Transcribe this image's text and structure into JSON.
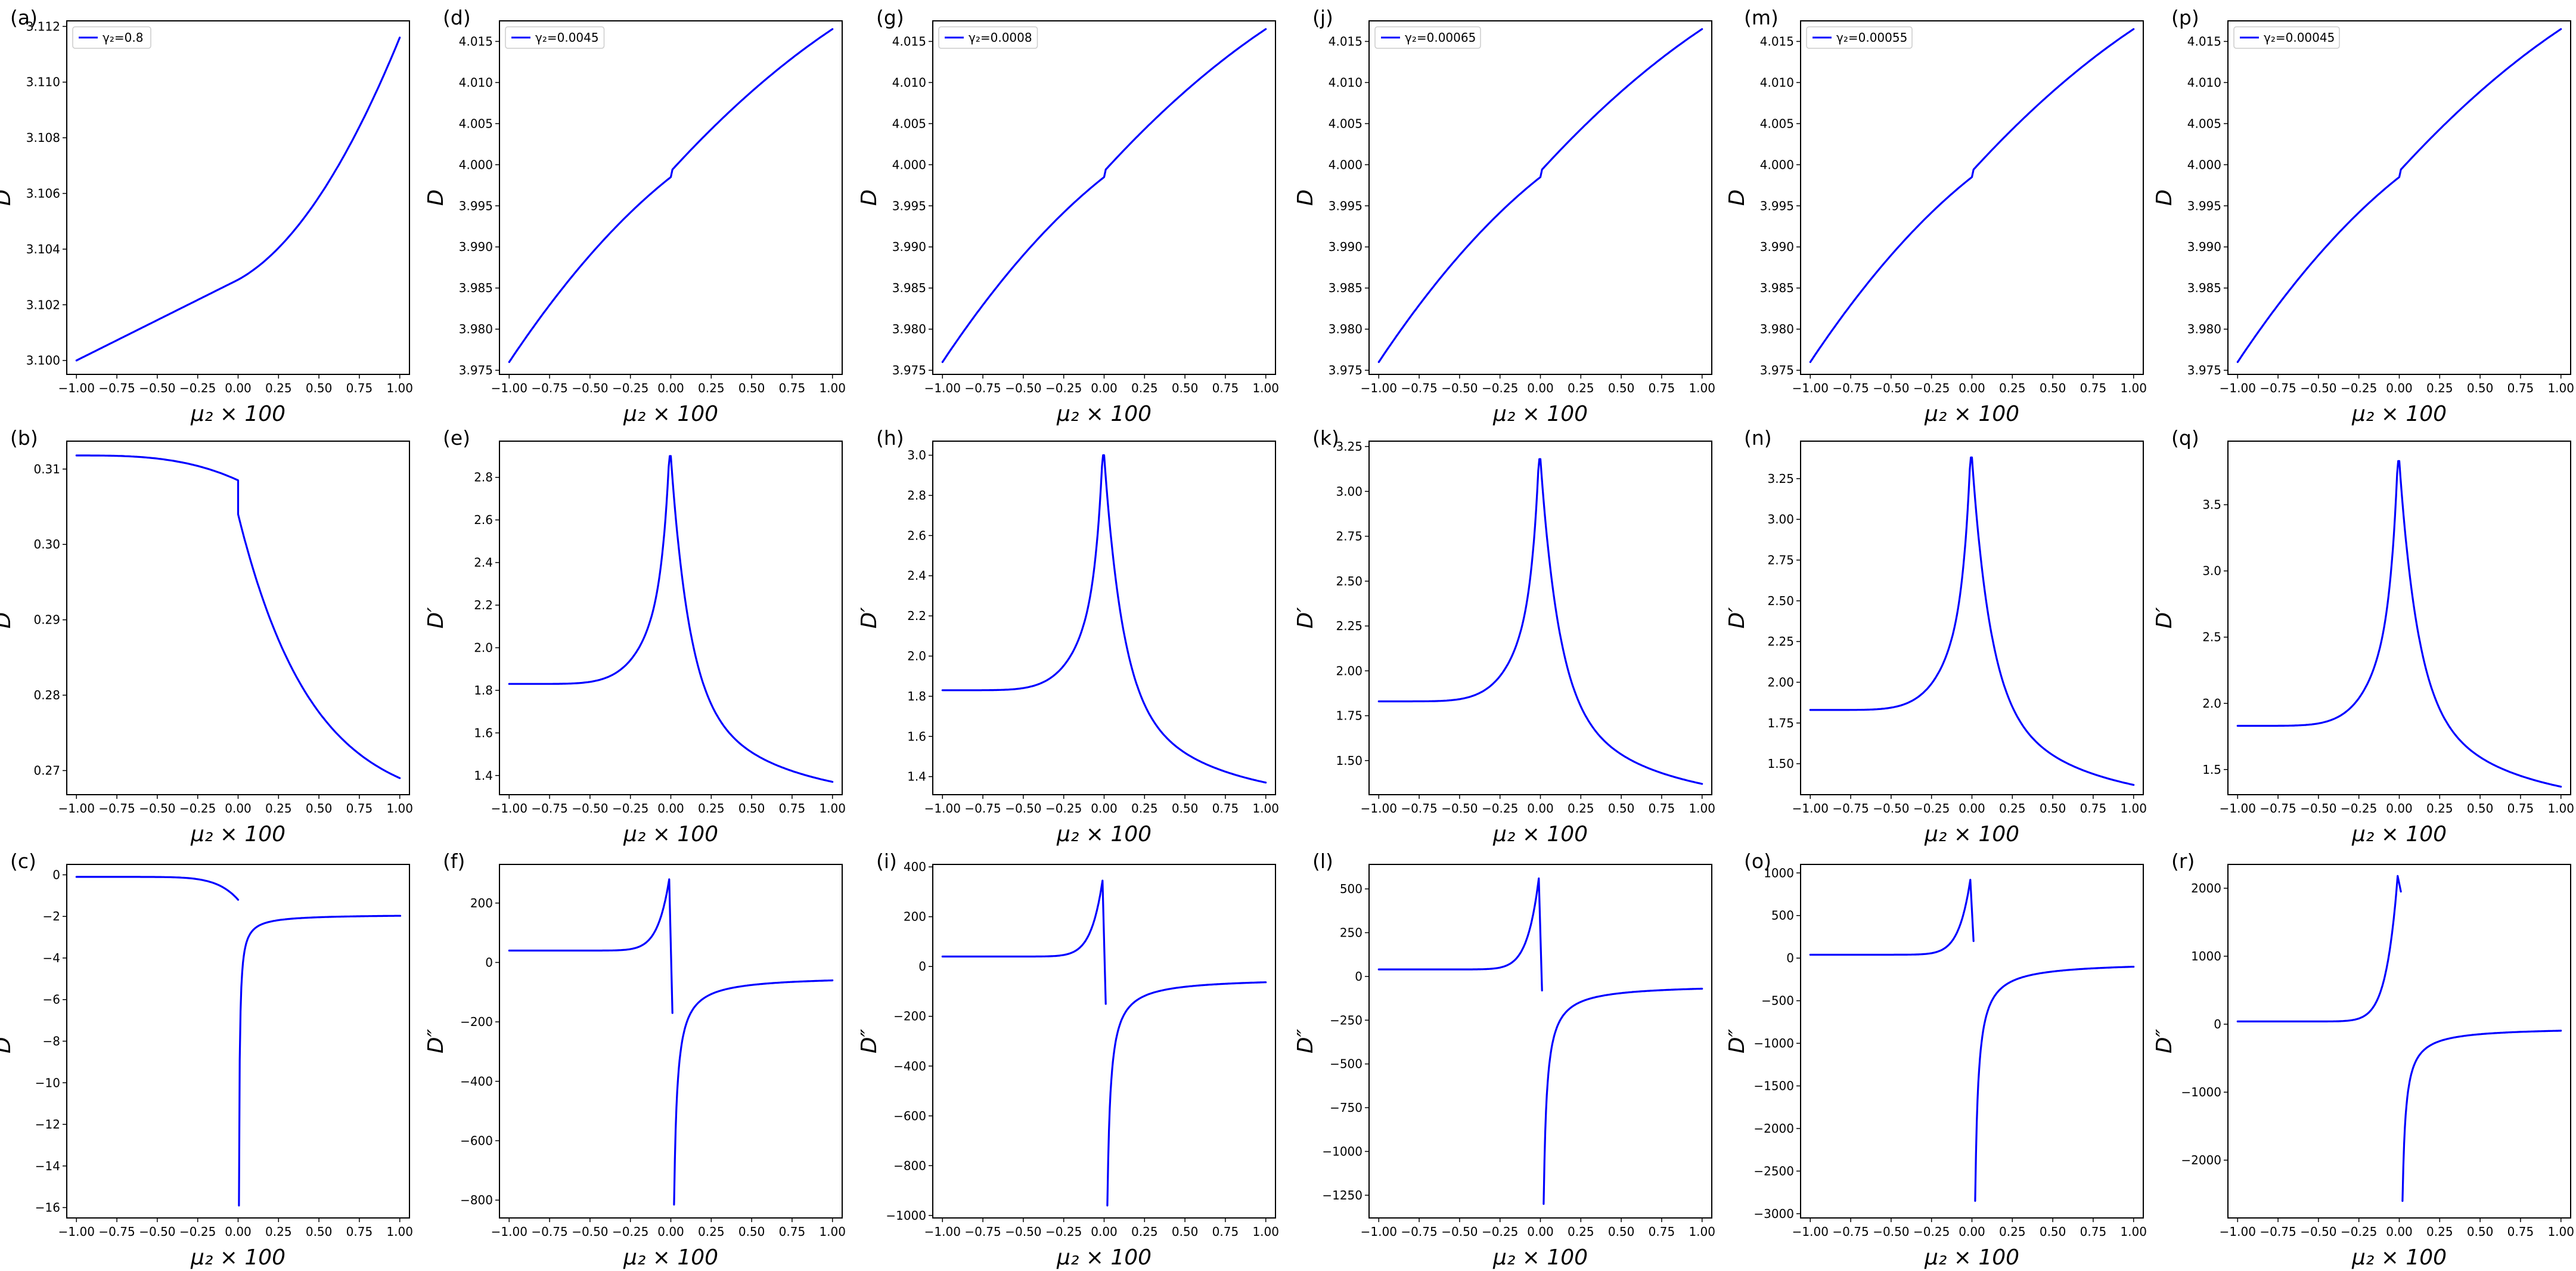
{
  "chart_data": [
    {
      "id": "a",
      "panel_label": "(a)",
      "type": "line",
      "series": [
        {
          "name": "γ₂=0.8",
          "shape": "Da"
        }
      ],
      "xlabel": "μ₂ × 100",
      "ylabel": "D",
      "xlim": [
        -1.06,
        1.06
      ],
      "ylim": [
        3.0995,
        3.1122
      ],
      "xticks": [
        "−1.00",
        "−0.75",
        "−0.50",
        "−0.25",
        "0.00",
        "0.25",
        "0.50",
        "0.75",
        "1.00"
      ],
      "yticks": [
        "3.100",
        "3.102",
        "3.104",
        "3.106",
        "3.108",
        "3.110",
        "3.112"
      ],
      "legend": "top-left",
      "grid": false
    },
    {
      "id": "b",
      "panel_label": "(b)",
      "type": "line",
      "series": [
        {
          "name": "",
          "shape": "Dpa"
        }
      ],
      "xlabel": "μ₂ × 100",
      "ylabel": "D′",
      "xlim": [
        -1.06,
        1.06
      ],
      "ylim": [
        0.2668,
        0.3137
      ],
      "xticks": [
        "−1.00",
        "−0.75",
        "−0.50",
        "−0.25",
        "0.00",
        "0.25",
        "0.50",
        "0.75",
        "1.00"
      ],
      "yticks": [
        "0.27",
        "0.28",
        "0.29",
        "0.30",
        "0.31"
      ],
      "grid": false
    },
    {
      "id": "c",
      "panel_label": "(c)",
      "type": "line",
      "series": [
        {
          "name": "",
          "shape": "Dppa"
        }
      ],
      "xlabel": "μ₂ × 100",
      "ylabel": "D″",
      "xlim": [
        -1.06,
        1.06
      ],
      "ylim": [
        -16.5,
        0.5
      ],
      "xticks": [
        "−1.00",
        "−0.75",
        "−0.50",
        "−0.25",
        "0.00",
        "0.25",
        "0.50",
        "0.75",
        "1.00"
      ],
      "yticks": [
        "0",
        "−2",
        "−4",
        "−6",
        "−8",
        "−10",
        "−12",
        "−14",
        "−16"
      ],
      "grid": false
    },
    {
      "id": "d",
      "panel_label": "(d)",
      "type": "line",
      "series": [
        {
          "name": "γ₂=0.0045",
          "shape": "D"
        }
      ],
      "xlabel": "μ₂ × 100",
      "ylabel": "D",
      "xlim": [
        -1.06,
        1.06
      ],
      "ylim": [
        3.9745,
        4.0175
      ],
      "xticks": [
        "−1.00",
        "−0.75",
        "−0.50",
        "−0.25",
        "0.00",
        "0.25",
        "0.50",
        "0.75",
        "1.00"
      ],
      "yticks": [
        "3.975",
        "3.980",
        "3.985",
        "3.990",
        "3.995",
        "4.000",
        "4.005",
        "4.010",
        "4.015"
      ],
      "legend": "top-left",
      "grid": false
    },
    {
      "id": "e",
      "panel_label": "(e)",
      "type": "line",
      "series": [
        {
          "name": "",
          "shape": "Dp"
        }
      ],
      "xlabel": "μ₂ × 100",
      "ylabel": "D′",
      "xlim": [
        -1.06,
        1.06
      ],
      "ylim": [
        1.31,
        2.97
      ],
      "xticks": [
        "−1.00",
        "−0.75",
        "−0.50",
        "−0.25",
        "0.00",
        "0.25",
        "0.50",
        "0.75",
        "1.00"
      ],
      "yticks": [
        "1.4",
        "1.6",
        "1.8",
        "2.0",
        "2.2",
        "2.4",
        "2.6",
        "2.8"
      ],
      "grid": false
    },
    {
      "id": "f",
      "panel_label": "(f)",
      "type": "line",
      "series": [
        {
          "name": "",
          "shape": "Dpp"
        }
      ],
      "xlabel": "μ₂ × 100",
      "ylabel": "D″",
      "xlim": [
        -1.06,
        1.06
      ],
      "ylim": [
        -860,
        330
      ],
      "xticks": [
        "−1.00",
        "−0.75",
        "−0.50",
        "−0.25",
        "0.00",
        "0.25",
        "0.50",
        "0.75",
        "1.00"
      ],
      "yticks": [
        "200",
        "0",
        "−200",
        "−400",
        "−600",
        "−800"
      ],
      "grid": false
    },
    {
      "id": "g",
      "panel_label": "(g)",
      "type": "line",
      "series": [
        {
          "name": "γ₂=0.0008",
          "shape": "D"
        }
      ],
      "xlabel": "μ₂ × 100",
      "ylabel": "D",
      "xlim": [
        -1.06,
        1.06
      ],
      "ylim": [
        3.9745,
        4.0175
      ],
      "xticks": [
        "−1.00",
        "−0.75",
        "−0.50",
        "−0.25",
        "0.00",
        "0.25",
        "0.50",
        "0.75",
        "1.00"
      ],
      "yticks": [
        "3.975",
        "3.980",
        "3.985",
        "3.990",
        "3.995",
        "4.000",
        "4.005",
        "4.010",
        "4.015"
      ],
      "legend": "top-left",
      "grid": false
    },
    {
      "id": "h",
      "panel_label": "(h)",
      "type": "line",
      "series": [
        {
          "name": "",
          "shape": "Dp"
        }
      ],
      "xlabel": "μ₂ × 100",
      "ylabel": "D′",
      "xlim": [
        -1.06,
        1.06
      ],
      "ylim": [
        1.31,
        3.07
      ],
      "xticks": [
        "−1.00",
        "−0.75",
        "−0.50",
        "−0.25",
        "0.00",
        "0.25",
        "0.50",
        "0.75",
        "1.00"
      ],
      "yticks": [
        "1.4",
        "1.6",
        "1.8",
        "2.0",
        "2.2",
        "2.4",
        "2.6",
        "2.8",
        "3.0"
      ],
      "grid": false
    },
    {
      "id": "i",
      "panel_label": "(i)",
      "type": "line",
      "series": [
        {
          "name": "",
          "shape": "Dpp"
        }
      ],
      "xlabel": "μ₂ × 100",
      "ylabel": "D″",
      "xlim": [
        -1.06,
        1.06
      ],
      "ylim": [
        -1010,
        410
      ],
      "xticks": [
        "−1.00",
        "−0.75",
        "−0.50",
        "−0.25",
        "0.00",
        "0.25",
        "0.50",
        "0.75",
        "1.00"
      ],
      "yticks": [
        "400",
        "200",
        "0",
        "−200",
        "−400",
        "−600",
        "−800",
        "−1000"
      ],
      "grid": false
    },
    {
      "id": "j",
      "panel_label": "(j)",
      "type": "line",
      "series": [
        {
          "name": "γ₂=0.00065",
          "shape": "D"
        }
      ],
      "xlabel": "μ₂ × 100",
      "ylabel": "D",
      "xlim": [
        -1.06,
        1.06
      ],
      "ylim": [
        3.9745,
        4.0175
      ],
      "xticks": [
        "−1.00",
        "−0.75",
        "−0.50",
        "−0.25",
        "0.00",
        "0.25",
        "0.50",
        "0.75",
        "1.00"
      ],
      "yticks": [
        "3.975",
        "3.980",
        "3.985",
        "3.990",
        "3.995",
        "4.000",
        "4.005",
        "4.010",
        "4.015"
      ],
      "legend": "top-left",
      "grid": false
    },
    {
      "id": "k",
      "panel_label": "(k)",
      "type": "line",
      "series": [
        {
          "name": "",
          "shape": "Dp"
        }
      ],
      "xlabel": "μ₂ × 100",
      "ylabel": "D′",
      "xlim": [
        -1.06,
        1.06
      ],
      "ylim": [
        1.31,
        3.28
      ],
      "xticks": [
        "−1.00",
        "−0.75",
        "−0.50",
        "−0.25",
        "0.00",
        "0.25",
        "0.50",
        "0.75",
        "1.00"
      ],
      "yticks": [
        "1.50",
        "1.75",
        "2.00",
        "2.25",
        "2.50",
        "2.75",
        "3.00",
        "3.25"
      ],
      "grid": false
    },
    {
      "id": "l",
      "panel_label": "(l)",
      "type": "line",
      "series": [
        {
          "name": "",
          "shape": "Dpp"
        }
      ],
      "xlabel": "μ₂ × 100",
      "ylabel": "D″",
      "xlim": [
        -1.06,
        1.06
      ],
      "ylim": [
        -1380,
        640
      ],
      "xticks": [
        "−1.00",
        "−0.75",
        "−0.50",
        "−0.25",
        "0.00",
        "0.25",
        "0.50",
        "0.75",
        "1.00"
      ],
      "yticks": [
        "500",
        "250",
        "0",
        "−250",
        "−500",
        "−750",
        "−1000",
        "−1250"
      ],
      "grid": false
    },
    {
      "id": "m",
      "panel_label": "(m)",
      "type": "line",
      "series": [
        {
          "name": "γ₂=0.00055",
          "shape": "D"
        }
      ],
      "xlabel": "μ₂ × 100",
      "ylabel": "D",
      "xlim": [
        -1.06,
        1.06
      ],
      "ylim": [
        3.9745,
        4.0175
      ],
      "xticks": [
        "−1.00",
        "−0.75",
        "−0.50",
        "−0.25",
        "0.00",
        "0.25",
        "0.50",
        "0.75",
        "1.00"
      ],
      "yticks": [
        "3.975",
        "3.980",
        "3.985",
        "3.990",
        "3.995",
        "4.000",
        "4.005",
        "4.010",
        "4.015"
      ],
      "legend": "top-left",
      "grid": false
    },
    {
      "id": "n",
      "panel_label": "(n)",
      "type": "line",
      "series": [
        {
          "name": "",
          "shape": "Dp"
        }
      ],
      "xlabel": "μ₂ × 100",
      "ylabel": "D′",
      "xlim": [
        -1.06,
        1.06
      ],
      "ylim": [
        1.31,
        3.48
      ],
      "xticks": [
        "−1.00",
        "−0.75",
        "−0.50",
        "−0.25",
        "0.00",
        "0.25",
        "0.50",
        "0.75",
        "1.00"
      ],
      "yticks": [
        "1.50",
        "1.75",
        "2.00",
        "2.25",
        "2.50",
        "2.75",
        "3.00",
        "3.25"
      ],
      "grid": false
    },
    {
      "id": "o",
      "panel_label": "(o)",
      "type": "line",
      "series": [
        {
          "name": "",
          "shape": "Dpp"
        }
      ],
      "xlabel": "μ₂ × 100",
      "ylabel": "D″",
      "xlim": [
        -1.06,
        1.06
      ],
      "ylim": [
        -3050,
        1100
      ],
      "xticks": [
        "−1.00",
        "−0.75",
        "−0.50",
        "−0.25",
        "0.00",
        "0.25",
        "0.50",
        "0.75",
        "1.00"
      ],
      "yticks": [
        "1000",
        "500",
        "0",
        "−500",
        "−1000",
        "−1500",
        "−2000",
        "−2500",
        "−3000"
      ],
      "grid": false
    },
    {
      "id": "p",
      "panel_label": "(p)",
      "type": "line",
      "series": [
        {
          "name": "γ₂=0.00045",
          "shape": "D"
        }
      ],
      "xlabel": "μ₂ × 100",
      "ylabel": "D",
      "xlim": [
        -1.06,
        1.06
      ],
      "ylim": [
        3.9745,
        4.0175
      ],
      "xticks": [
        "−1.00",
        "−0.75",
        "−0.50",
        "−0.25",
        "0.00",
        "0.25",
        "0.50",
        "0.75",
        "1.00"
      ],
      "yticks": [
        "3.975",
        "3.980",
        "3.985",
        "3.990",
        "3.995",
        "4.000",
        "4.005",
        "4.010",
        "4.015"
      ],
      "legend": "top-left",
      "grid": false
    },
    {
      "id": "q",
      "panel_label": "(q)",
      "type": "line",
      "series": [
        {
          "name": "",
          "shape": "Dp"
        }
      ],
      "xlabel": "μ₂ × 100",
      "ylabel": "D′",
      "xlim": [
        -1.06,
        1.06
      ],
      "ylim": [
        1.31,
        3.98
      ],
      "xticks": [
        "−1.00",
        "−0.75",
        "−0.50",
        "−0.25",
        "0.00",
        "0.25",
        "0.50",
        "0.75",
        "1.00"
      ],
      "yticks": [
        "1.5",
        "2.0",
        "2.5",
        "3.0",
        "3.5"
      ],
      "grid": false
    },
    {
      "id": "r",
      "panel_label": "(r)",
      "type": "line",
      "series": [
        {
          "name": "",
          "shape": "Dpp"
        }
      ],
      "xlabel": "μ₂ × 100",
      "ylabel": "D″",
      "xlim": [
        -1.06,
        1.06
      ],
      "ylim": [
        -2850,
        2350
      ],
      "xticks": [
        "−1.00",
        "−0.75",
        "−0.50",
        "−0.25",
        "0.00",
        "0.25",
        "0.50",
        "0.75",
        "1.00"
      ],
      "yticks": [
        "2000",
        "1000",
        "0",
        "−1000",
        "−2000"
      ],
      "grid": false
    }
  ],
  "curve_params": {
    "Da": {
      "y_left": 3.1,
      "y_zero": 3.1029,
      "y_right": 3.1116
    },
    "Dpa": {
      "y_left": 0.3118,
      "y_zero_minus": 0.3085,
      "y_zero_plus": 0.304,
      "y_right": 0.269
    },
    "Dppa": {
      "y_left": -0.1,
      "y_zero_minus": -1.2,
      "y_zero_plus": -15.9,
      "y_right": -1.9
    },
    "panel_b": {
      "peak": 2.9
    },
    "panel_h": {
      "peak": 3.0
    },
    "panel_k": {
      "peak": 3.18
    },
    "panel_n": {
      "peak": 3.38
    },
    "panel_q": {
      "peak": 3.83
    },
    "panel_f": {
      "peak": 280,
      "drop": -170,
      "floor": -815,
      "tail": -45
    },
    "panel_i": {
      "peak": 345,
      "drop": -150,
      "floor": -960,
      "tail": -45
    },
    "panel_l": {
      "peak": 560,
      "drop": -80,
      "floor": -1300,
      "tail": -45
    },
    "panel_o": {
      "peak": 920,
      "drop": 200,
      "floor": -2850,
      "tail": -45
    },
    "panel_r": {
      "peak": 2180,
      "drop": 1950,
      "floor": -2600,
      "tail": -45
    }
  }
}
